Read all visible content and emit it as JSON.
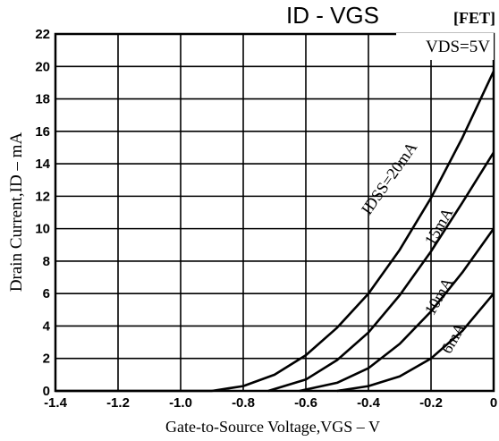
{
  "chart_data": {
    "type": "line",
    "title": "ID - VGS",
    "tag": "[FET]",
    "condition": "VDS=5V",
    "xlabel": "Gate-to-Source Voltage,VGS – V",
    "ylabel": "Drain Current,ID – mA",
    "xlim": [
      -1.4,
      0
    ],
    "ylim": [
      0,
      22
    ],
    "xticks": [
      "-1.4",
      "-1.2",
      "-1.0",
      "-0.8",
      "-0.6",
      "-0.4",
      "-0.2",
      "0"
    ],
    "yticks": [
      "0",
      "2",
      "4",
      "6",
      "8",
      "10",
      "12",
      "14",
      "16",
      "18",
      "20",
      "22"
    ],
    "grid": true,
    "series": [
      {
        "name": "IDSS=20mA",
        "x": [
          -0.9,
          -0.8,
          -0.7,
          -0.6,
          -0.5,
          -0.4,
          -0.3,
          -0.2,
          -0.1,
          0
        ],
        "y": [
          0,
          0.3,
          1.0,
          2.2,
          3.9,
          6.0,
          8.7,
          11.9,
          15.6,
          19.7
        ]
      },
      {
        "name": "15mA",
        "x": [
          -0.72,
          -0.6,
          -0.5,
          -0.4,
          -0.3,
          -0.2,
          -0.1,
          0
        ],
        "y": [
          0,
          0.7,
          1.9,
          3.6,
          5.9,
          8.6,
          11.6,
          14.7
        ]
      },
      {
        "name": "10mA",
        "x": [
          -0.62,
          -0.5,
          -0.4,
          -0.3,
          -0.2,
          -0.1,
          0
        ],
        "y": [
          0,
          0.5,
          1.4,
          2.9,
          4.9,
          7.3,
          10.0
        ]
      },
      {
        "name": "6mA",
        "x": [
          -0.5,
          -0.4,
          -0.3,
          -0.2,
          -0.1,
          0
        ],
        "y": [
          0,
          0.3,
          0.9,
          2.0,
          3.7,
          6.0
        ]
      }
    ]
  }
}
